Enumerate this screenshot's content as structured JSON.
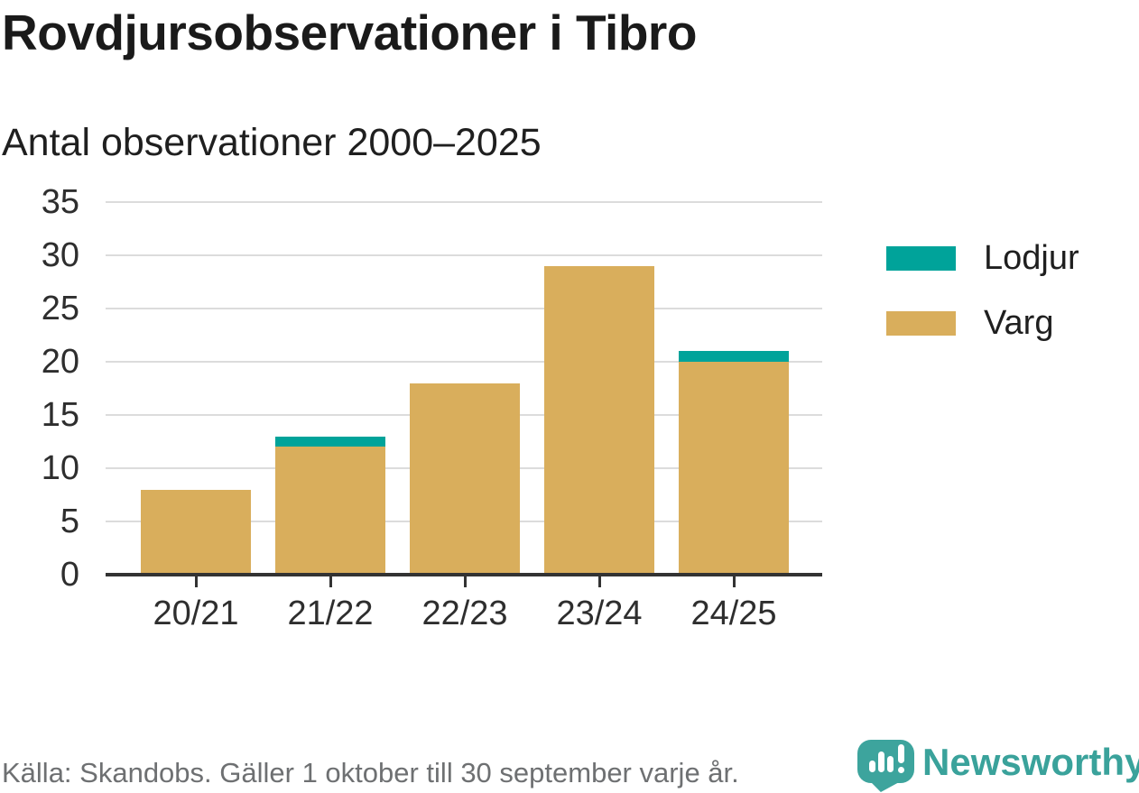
{
  "header": {
    "title": "Rovdjursobservationer i Tibro",
    "subtitle": "Antal observationer 2000–2025"
  },
  "chart_data": {
    "type": "bar",
    "stacked": true,
    "title": "Rovdjursobservationer i Tibro",
    "subtitle": "Antal observationer 2000–2025",
    "categories": [
      "20/21",
      "21/22",
      "22/23",
      "23/24",
      "24/25"
    ],
    "series": [
      {
        "name": "Lodjur",
        "color": "#00a39a",
        "values": [
          0,
          1,
          0,
          0,
          1
        ]
      },
      {
        "name": "Varg",
        "color": "#d9ae5c",
        "values": [
          8,
          12,
          18,
          29,
          20
        ]
      }
    ],
    "totals": [
      8,
      13,
      18,
      29,
      21
    ],
    "xlabel": "",
    "ylabel": "",
    "ylim": [
      0,
      35
    ],
    "ytick_step": 5,
    "yticks": [
      0,
      5,
      10,
      15,
      20,
      25,
      30,
      35
    ],
    "grid": true,
    "legend_position": "right"
  },
  "footer": {
    "source": "Källa: Skandobs. Gäller 1 oktober till 30 september varje år.",
    "brand": "Newsworthy"
  },
  "colors": {
    "lodjur": "#00a39a",
    "varg": "#d9ae5c",
    "brand_teal": "#3aa29b",
    "gridline": "#dcdcdc",
    "axis": "#333333"
  }
}
